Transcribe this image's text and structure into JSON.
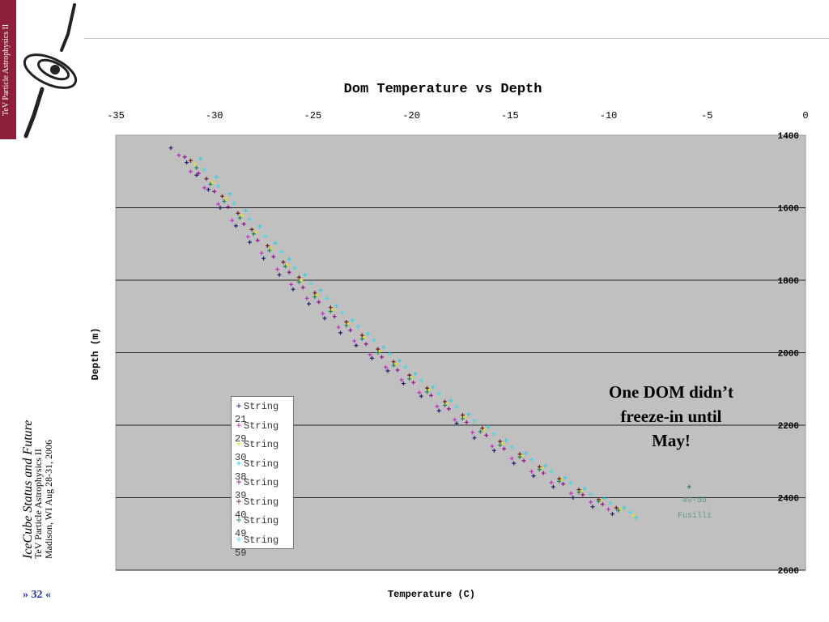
{
  "banner": {
    "text": "TeV Particle Astrophysics II"
  },
  "footer": {
    "title": "IceCube Status and Future",
    "subtitle": "TeV Particle Astrophysics II",
    "date": "Madison, WI Aug 28-31, 2006",
    "page": "» 32 «"
  },
  "annotation": {
    "line1": "One DOM didn’t",
    "line2": "freeze-in until",
    "line3": "May!"
  },
  "outlier_label": {
    "line1": "49-55",
    "line2": "Fusilli"
  },
  "colors": {
    "banner": "#8c1f3a",
    "plot_bg": "#c0c0c0",
    "page_num": "#1f3aa0"
  },
  "chart_data": {
    "type": "scatter",
    "title": "Dom Temperature vs Depth",
    "xlabel": "Temperature (C)",
    "ylabel": "Depth (m)",
    "xlim": [
      -35,
      0
    ],
    "ylim": [
      1400,
      2600
    ],
    "y_inverted": true,
    "x_axis_position": "top",
    "y_axis_position": "right",
    "x_ticks": [
      -35,
      -30,
      -25,
      -20,
      -15,
      -10,
      -5,
      0
    ],
    "y_ticks": [
      1400,
      1600,
      1800,
      2000,
      2200,
      2400,
      2600
    ],
    "grid": "horizontal",
    "legend_position": "lower-left",
    "series": [
      {
        "name": "String 21",
        "color": "#1a1a6e",
        "marker": "+",
        "points": [
          [
            -32.2,
            1435
          ],
          [
            -31.4,
            1475
          ],
          [
            -30.9,
            1510
          ],
          [
            -30.3,
            1550
          ],
          [
            -29.7,
            1600
          ],
          [
            -28.9,
            1650
          ],
          [
            -28.2,
            1695
          ],
          [
            -27.5,
            1740
          ],
          [
            -26.7,
            1785
          ],
          [
            -26.0,
            1825
          ],
          [
            -25.2,
            1865
          ],
          [
            -24.4,
            1905
          ],
          [
            -23.6,
            1945
          ],
          [
            -22.8,
            1980
          ],
          [
            -22.0,
            2015
          ],
          [
            -21.2,
            2050
          ],
          [
            -20.4,
            2085
          ],
          [
            -19.5,
            2120
          ],
          [
            -18.6,
            2160
          ],
          [
            -17.7,
            2195
          ],
          [
            -16.8,
            2235
          ],
          [
            -15.8,
            2270
          ],
          [
            -14.8,
            2305
          ],
          [
            -13.8,
            2340
          ],
          [
            -12.8,
            2370
          ],
          [
            -11.8,
            2400
          ],
          [
            -10.8,
            2425
          ],
          [
            -9.8,
            2445
          ]
        ]
      },
      {
        "name": "String 29",
        "color": "#c030c0",
        "marker": "+",
        "points": [
          [
            -31.8,
            1455
          ],
          [
            -31.2,
            1500
          ],
          [
            -30.5,
            1545
          ],
          [
            -29.8,
            1590
          ],
          [
            -29.1,
            1635
          ],
          [
            -28.3,
            1680
          ],
          [
            -27.6,
            1725
          ],
          [
            -26.8,
            1770
          ],
          [
            -26.1,
            1812
          ],
          [
            -25.3,
            1850
          ],
          [
            -24.5,
            1892
          ],
          [
            -23.7,
            1930
          ],
          [
            -22.9,
            1968
          ],
          [
            -22.1,
            2005
          ],
          [
            -21.3,
            2040
          ],
          [
            -20.5,
            2075
          ],
          [
            -19.6,
            2110
          ],
          [
            -18.7,
            2148
          ],
          [
            -17.8,
            2185
          ],
          [
            -16.9,
            2220
          ],
          [
            -15.9,
            2258
          ],
          [
            -14.9,
            2292
          ],
          [
            -13.9,
            2328
          ],
          [
            -12.9,
            2358
          ],
          [
            -11.9,
            2388
          ],
          [
            -10.9,
            2412
          ],
          [
            -10.0,
            2432
          ]
        ]
      },
      {
        "name": "String 30",
        "color": "#e0e020",
        "marker": "+",
        "points": [
          [
            -31.0,
            1480
          ],
          [
            -30.1,
            1530
          ],
          [
            -29.4,
            1575
          ],
          [
            -28.6,
            1622
          ],
          [
            -27.9,
            1668
          ],
          [
            -27.1,
            1712
          ],
          [
            -26.3,
            1758
          ],
          [
            -25.6,
            1800
          ],
          [
            -24.8,
            1842
          ],
          [
            -24.0,
            1882
          ],
          [
            -23.2,
            1920
          ],
          [
            -22.4,
            1958
          ],
          [
            -21.6,
            1995
          ],
          [
            -20.8,
            2030
          ],
          [
            -20.0,
            2068
          ],
          [
            -19.1,
            2102
          ],
          [
            -18.2,
            2140
          ],
          [
            -17.3,
            2178
          ],
          [
            -16.3,
            2212
          ],
          [
            -15.4,
            2250
          ],
          [
            -14.4,
            2284
          ],
          [
            -13.4,
            2318
          ],
          [
            -12.4,
            2350
          ],
          [
            -11.4,
            2382
          ],
          [
            -10.4,
            2408
          ],
          [
            -9.4,
            2432
          ],
          [
            -8.7,
            2450
          ]
        ]
      },
      {
        "name": "String 38",
        "color": "#30d0e0",
        "marker": "+",
        "points": [
          [
            -30.7,
            1465
          ],
          [
            -29.9,
            1515
          ],
          [
            -29.2,
            1562
          ],
          [
            -28.4,
            1608
          ],
          [
            -27.7,
            1652
          ],
          [
            -26.9,
            1698
          ],
          [
            -26.2,
            1742
          ],
          [
            -25.4,
            1785
          ],
          [
            -24.6,
            1828
          ],
          [
            -23.8,
            1870
          ],
          [
            -23.0,
            1910
          ],
          [
            -22.2,
            1948
          ],
          [
            -21.4,
            1985
          ],
          [
            -20.6,
            2022
          ],
          [
            -19.8,
            2058
          ],
          [
            -18.9,
            2095
          ],
          [
            -18.0,
            2132
          ],
          [
            -17.1,
            2170
          ],
          [
            -16.1,
            2205
          ],
          [
            -15.2,
            2242
          ],
          [
            -14.2,
            2278
          ],
          [
            -13.2,
            2312
          ],
          [
            -12.2,
            2345
          ],
          [
            -11.2,
            2375
          ],
          [
            -10.2,
            2402
          ],
          [
            -9.2,
            2428
          ],
          [
            -8.6,
            2455
          ]
        ]
      },
      {
        "name": "String 39",
        "color": "#901090",
        "marker": "+",
        "points": [
          [
            -31.5,
            1460
          ],
          [
            -30.8,
            1505
          ],
          [
            -30.0,
            1555
          ],
          [
            -29.3,
            1598
          ],
          [
            -28.5,
            1645
          ],
          [
            -27.8,
            1690
          ],
          [
            -27.0,
            1735
          ],
          [
            -26.2,
            1778
          ],
          [
            -25.5,
            1820
          ],
          [
            -24.7,
            1860
          ],
          [
            -23.9,
            1900
          ],
          [
            -23.1,
            1938
          ],
          [
            -22.3,
            1976
          ],
          [
            -21.5,
            2012
          ],
          [
            -20.7,
            2048
          ],
          [
            -19.9,
            2082
          ],
          [
            -19.0,
            2118
          ],
          [
            -18.1,
            2155
          ],
          [
            -17.2,
            2192
          ],
          [
            -16.2,
            2228
          ],
          [
            -15.3,
            2265
          ],
          [
            -14.3,
            2298
          ],
          [
            -13.3,
            2332
          ],
          [
            -12.3,
            2362
          ],
          [
            -11.3,
            2392
          ],
          [
            -10.3,
            2418
          ]
        ]
      },
      {
        "name": "String 40",
        "color": "#701a1a",
        "marker": "+",
        "points": [
          [
            -31.2,
            1470
          ],
          [
            -30.4,
            1520
          ],
          [
            -29.6,
            1568
          ],
          [
            -28.8,
            1615
          ],
          [
            -28.1,
            1660
          ],
          [
            -27.3,
            1705
          ],
          [
            -26.5,
            1750
          ],
          [
            -25.7,
            1792
          ],
          [
            -24.9,
            1835
          ],
          [
            -24.1,
            1875
          ],
          [
            -23.3,
            1915
          ],
          [
            -22.5,
            1952
          ],
          [
            -21.7,
            1990
          ],
          [
            -20.9,
            2025
          ],
          [
            -20.1,
            2062
          ],
          [
            -19.2,
            2098
          ],
          [
            -18.3,
            2135
          ],
          [
            -17.4,
            2172
          ],
          [
            -16.4,
            2208
          ],
          [
            -15.5,
            2245
          ],
          [
            -14.5,
            2280
          ],
          [
            -13.5,
            2315
          ],
          [
            -12.5,
            2348
          ],
          [
            -11.5,
            2378
          ],
          [
            -10.5,
            2405
          ],
          [
            -9.6,
            2428
          ]
        ]
      },
      {
        "name": "String 49",
        "color": "#208060",
        "marker": "+",
        "points": [
          [
            -30.9,
            1490
          ],
          [
            -30.2,
            1535
          ],
          [
            -29.5,
            1582
          ],
          [
            -28.7,
            1628
          ],
          [
            -28.0,
            1672
          ],
          [
            -27.2,
            1718
          ],
          [
            -26.4,
            1762
          ],
          [
            -25.7,
            1805
          ],
          [
            -24.9,
            1846
          ],
          [
            -24.1,
            1886
          ],
          [
            -23.3,
            1925
          ],
          [
            -22.5,
            1962
          ],
          [
            -21.7,
            2000
          ],
          [
            -20.9,
            2035
          ],
          [
            -20.1,
            2072
          ],
          [
            -19.2,
            2108
          ],
          [
            -18.3,
            2145
          ],
          [
            -17.4,
            2182
          ],
          [
            -16.5,
            2218
          ],
          [
            -15.5,
            2255
          ],
          [
            -14.5,
            2288
          ],
          [
            -13.5,
            2322
          ],
          [
            -12.5,
            2355
          ],
          [
            -11.5,
            2385
          ],
          [
            -10.5,
            2410
          ],
          [
            -9.5,
            2435
          ],
          [
            -5.9,
            2370
          ]
        ]
      },
      {
        "name": "String 59",
        "color": "#40d8e8",
        "marker": "+",
        "points": [
          [
            -30.5,
            1495
          ],
          [
            -29.8,
            1540
          ],
          [
            -29.0,
            1588
          ],
          [
            -28.2,
            1632
          ],
          [
            -27.4,
            1678
          ],
          [
            -26.6,
            1722
          ],
          [
            -25.9,
            1766
          ],
          [
            -25.1,
            1808
          ],
          [
            -24.3,
            1850
          ],
          [
            -23.5,
            1890
          ],
          [
            -22.7,
            1928
          ],
          [
            -21.9,
            1966
          ],
          [
            -21.1,
            2003
          ],
          [
            -20.3,
            2040
          ],
          [
            -19.5,
            2076
          ],
          [
            -18.6,
            2112
          ],
          [
            -17.7,
            2150
          ],
          [
            -16.8,
            2188
          ],
          [
            -15.8,
            2224
          ],
          [
            -14.9,
            2260
          ],
          [
            -13.9,
            2295
          ],
          [
            -12.9,
            2328
          ],
          [
            -11.9,
            2360
          ],
          [
            -10.9,
            2390
          ],
          [
            -9.9,
            2415
          ],
          [
            -8.9,
            2440
          ]
        ]
      }
    ]
  }
}
